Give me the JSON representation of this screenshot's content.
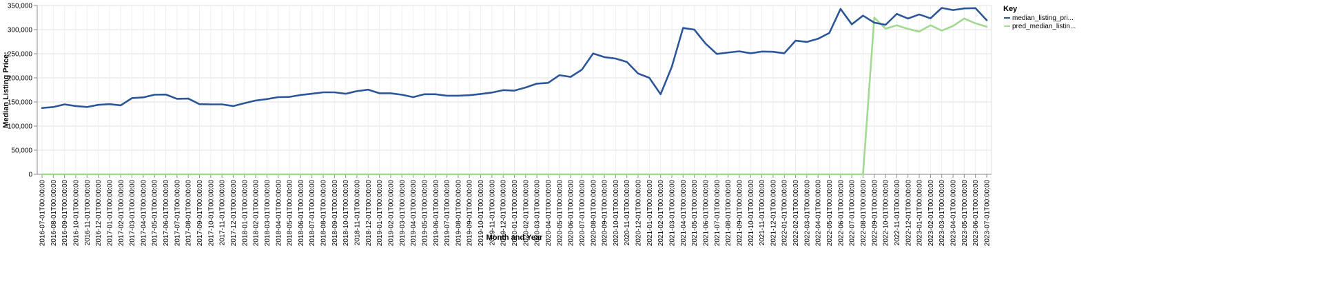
{
  "chart_data": {
    "type": "line",
    "xlabel": "Month and Year",
    "ylabel": "Median Listing Price:",
    "ylim": [
      0,
      350000
    ],
    "yticks": [
      "0",
      "50,000",
      "100,000",
      "150,000",
      "200,000",
      "250,000",
      "300,000",
      "350,000"
    ],
    "ytick_values": [
      0,
      50000,
      100000,
      150000,
      200000,
      250000,
      300000,
      350000
    ],
    "grid": true,
    "legend_title": "Key",
    "legend_position": "top-right",
    "categories": [
      "2016-07-01T00:00:00",
      "2016-08-01T00:00:00",
      "2016-09-01T00:00:00",
      "2016-10-01T00:00:00",
      "2016-11-01T00:00:00",
      "2016-12-01T00:00:00",
      "2017-01-01T00:00:00",
      "2017-02-01T00:00:00",
      "2017-03-01T00:00:00",
      "2017-04-01T00:00:00",
      "2017-05-01T00:00:00",
      "2017-06-01T00:00:00",
      "2017-07-01T00:00:00",
      "2017-08-01T00:00:00",
      "2017-09-01T00:00:00",
      "2017-10-01T00:00:00",
      "2017-11-01T00:00:00",
      "2017-12-01T00:00:00",
      "2018-01-01T00:00:00",
      "2018-02-01T00:00:00",
      "2018-03-01T00:00:00",
      "2018-04-01T00:00:00",
      "2018-05-01T00:00:00",
      "2018-06-01T00:00:00",
      "2018-07-01T00:00:00",
      "2018-08-01T00:00:00",
      "2018-09-01T00:00:00",
      "2018-10-01T00:00:00",
      "2018-11-01T00:00:00",
      "2018-12-01T00:00:00",
      "2019-01-01T00:00:00",
      "2019-02-01T00:00:00",
      "2019-03-01T00:00:00",
      "2019-04-01T00:00:00",
      "2019-05-01T00:00:00",
      "2019-06-01T00:00:00",
      "2019-07-01T00:00:00",
      "2019-08-01T00:00:00",
      "2019-09-01T00:00:00",
      "2019-10-01T00:00:00",
      "2019-11-01T00:00:00",
      "2019-12-01T00:00:00",
      "2020-01-01T00:00:00",
      "2020-02-01T00:00:00",
      "2020-03-01T00:00:00",
      "2020-04-01T00:00:00",
      "2020-05-01T00:00:00",
      "2020-06-01T00:00:00",
      "2020-07-01T00:00:00",
      "2020-08-01T00:00:00",
      "2020-09-01T00:00:00",
      "2020-10-01T00:00:00",
      "2020-11-01T00:00:00",
      "2020-12-01T00:00:00",
      "2021-01-01T00:00:00",
      "2021-02-01T00:00:00",
      "2021-03-01T00:00:00",
      "2021-04-01T00:00:00",
      "2021-05-01T00:00:00",
      "2021-06-01T00:00:00",
      "2021-07-01T00:00:00",
      "2021-08-01T00:00:00",
      "2021-09-01T00:00:00",
      "2021-10-01T00:00:00",
      "2021-11-01T00:00:00",
      "2021-12-01T00:00:00",
      "2022-01-01T00:00:00",
      "2022-02-01T00:00:00",
      "2022-03-01T00:00:00",
      "2022-04-01T00:00:00",
      "2022-05-01T00:00:00",
      "2022-06-01T00:00:00",
      "2022-07-01T00:00:00",
      "2022-08-01T00:00:00",
      "2022-09-01T00:00:00",
      "2022-10-01T00:00:00",
      "2022-11-01T00:00:00",
      "2022-12-01T00:00:00",
      "2023-01-01T00:00:00",
      "2023-02-01T00:00:00",
      "2023-03-01T00:00:00",
      "2023-04-01T00:00:00",
      "2023-05-01T00:00:00",
      "2023-06-01T00:00:00",
      "2023-07-01T00:00:00"
    ],
    "series": [
      {
        "name": "median_listing_pri...",
        "color": "#2c5697",
        "values": [
          137500,
          139500,
          145000,
          141500,
          139500,
          144000,
          145500,
          143000,
          158000,
          159500,
          165000,
          165500,
          156500,
          157000,
          145500,
          145000,
          145000,
          141500,
          147500,
          153000,
          156000,
          160000,
          160500,
          164500,
          167000,
          170000,
          170000,
          167000,
          172500,
          175500,
          168000,
          168000,
          165000,
          160000,
          166000,
          166000,
          163000,
          163000,
          164000,
          166500,
          169500,
          174500,
          173500,
          180000,
          188000,
          189500,
          205500,
          202000,
          217000,
          250500,
          243000,
          240000,
          233000,
          209000,
          200000,
          166000,
          223000,
          303500,
          300000,
          271000,
          249500,
          252500,
          255000,
          251000,
          254500,
          254000,
          251000,
          277000,
          274500,
          281000,
          293000,
          343000,
          311000,
          329000,
          314500,
          310000,
          332500,
          323000,
          331500,
          323500,
          345000,
          340500,
          344000,
          344500,
          319500
        ]
      },
      {
        "name": "pred_median_listin...",
        "color": "#a2d991",
        "values": [
          0,
          0,
          0,
          0,
          0,
          0,
          0,
          0,
          0,
          0,
          0,
          0,
          0,
          0,
          0,
          0,
          0,
          0,
          0,
          0,
          0,
          0,
          0,
          0,
          0,
          0,
          0,
          0,
          0,
          0,
          0,
          0,
          0,
          0,
          0,
          0,
          0,
          0,
          0,
          0,
          0,
          0,
          0,
          0,
          0,
          0,
          0,
          0,
          0,
          0,
          0,
          0,
          0,
          0,
          0,
          0,
          0,
          0,
          0,
          0,
          0,
          0,
          0,
          0,
          0,
          0,
          0,
          0,
          0,
          0,
          0,
          0,
          0,
          0,
          325000,
          302000,
          309000,
          301500,
          296000,
          309000,
          298000,
          307500,
          323000,
          313000,
          306000
        ]
      }
    ]
  }
}
